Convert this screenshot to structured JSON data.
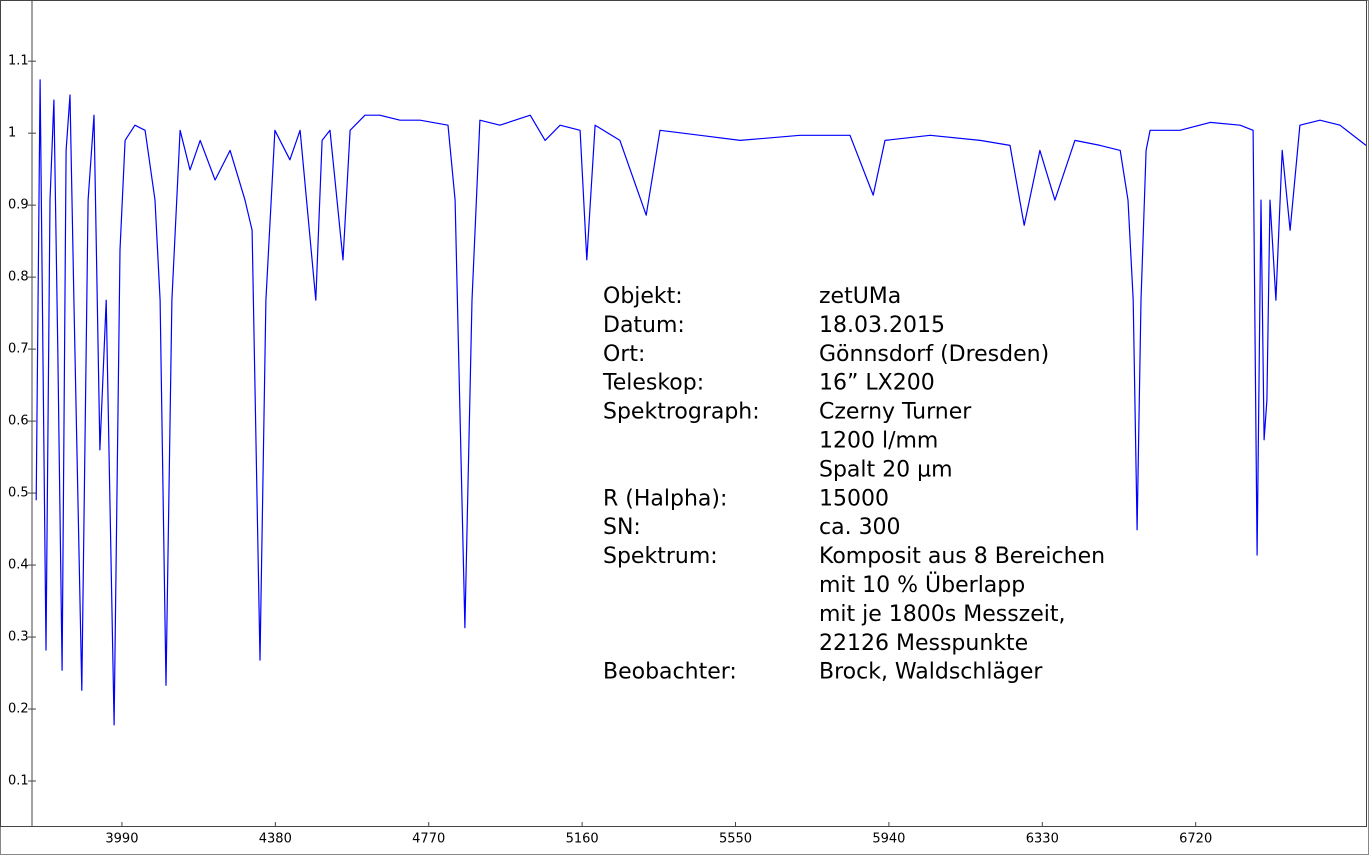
{
  "chart_data": {
    "type": "line",
    "xlim": [
      3680,
      7153
    ],
    "ylim": [
      0.0375,
      1.185
    ],
    "xticks": [
      3990,
      4380,
      4770,
      5160,
      5550,
      5940,
      6330,
      6720
    ],
    "yticks": [
      0.1,
      0.2,
      0.3,
      0.4,
      0.5,
      0.6,
      0.7,
      0.8,
      0.9,
      1,
      1.1
    ],
    "color": "#0000ff",
    "x": [
      3772,
      3782,
      3797,
      3807,
      3817,
      3827,
      3838,
      3848,
      3858,
      3868,
      3888,
      3904,
      3919,
      3934,
      3950,
      3970,
      3985,
      3998,
      4023,
      4049,
      4074,
      4087,
      4102,
      4117,
      4138,
      4163,
      4189,
      4227,
      4265,
      4303,
      4321,
      4341,
      4356,
      4379,
      4417,
      4443,
      4483,
      4499,
      4519,
      4552,
      4570,
      4608,
      4646,
      4697,
      4748,
      4819,
      4837,
      4862,
      4880,
      4900,
      4951,
      5028,
      5066,
      5104,
      5155,
      5172,
      5193,
      5256,
      5323,
      5358,
      5460,
      5562,
      5714,
      5841,
      5900,
      5930,
      6045,
      6172,
      6248,
      6284,
      6324,
      6362,
      6413,
      6477,
      6528,
      6548,
      6561,
      6571,
      6581,
      6594,
      6604,
      6680,
      6757,
      6833,
      6866,
      6876,
      6886,
      6894,
      6901,
      6909,
      6924,
      6940,
      6960,
      6985,
      7036,
      7087,
      7153
    ],
    "y": [
      0.49,
      1.074,
      0.282,
      0.907,
      1.046,
      0.699,
      0.254,
      0.976,
      1.053,
      0.768,
      0.226,
      0.907,
      1.025,
      0.56,
      0.768,
      0.178,
      0.838,
      0.99,
      1.011,
      1.004,
      0.907,
      0.768,
      0.233,
      0.768,
      1.004,
      0.949,
      0.99,
      0.935,
      0.976,
      0.907,
      0.865,
      0.268,
      0.768,
      1.004,
      0.963,
      1.004,
      0.768,
      0.99,
      1.004,
      0.824,
      1.004,
      1.025,
      1.025,
      1.018,
      1.018,
      1.011,
      0.907,
      0.313,
      0.768,
      1.018,
      1.011,
      1.025,
      0.99,
      1.011,
      1.004,
      0.824,
      1.011,
      0.99,
      0.886,
      1.004,
      0.997,
      0.99,
      0.997,
      0.997,
      0.914,
      0.99,
      0.997,
      0.99,
      0.983,
      0.872,
      0.976,
      0.907,
      0.99,
      0.983,
      0.976,
      0.907,
      0.768,
      0.449,
      0.768,
      0.976,
      1.004,
      1.004,
      1.015,
      1.011,
      1.004,
      0.414,
      0.907,
      0.574,
      0.629,
      0.907,
      0.768,
      0.976,
      0.865,
      1.011,
      1.018,
      1.011,
      0.983
    ],
    "annotation": [
      {
        "label": "Objekt:",
        "lines": [
          "zetUMa"
        ]
      },
      {
        "label": "Datum:",
        "lines": [
          "18.03.2015"
        ]
      },
      {
        "label": "Ort:",
        "lines": [
          "Gönnsdorf (Dresden)"
        ]
      },
      {
        "label": "Teleskop:",
        "lines": [
          "16” LX200"
        ]
      },
      {
        "label": "Spektrograph:",
        "lines": [
          "Czerny Turner",
          "1200 l/mm",
          "Spalt 20 µm"
        ]
      },
      {
        "label": "R (Halpha):",
        "lines": [
          "15000"
        ]
      },
      {
        "label": "SN:",
        "lines": [
          "ca. 300"
        ]
      },
      {
        "label": "Spektrum:",
        "lines": [
          "Komposit aus 8 Bereichen",
          "mit 10 % Überlapp",
          "mit je 1800s Messzeit,",
          "22126 Messpunkte"
        ]
      },
      {
        "label": "Beobachter:",
        "lines": [
          "Brock, Waldschläger"
        ]
      }
    ]
  }
}
